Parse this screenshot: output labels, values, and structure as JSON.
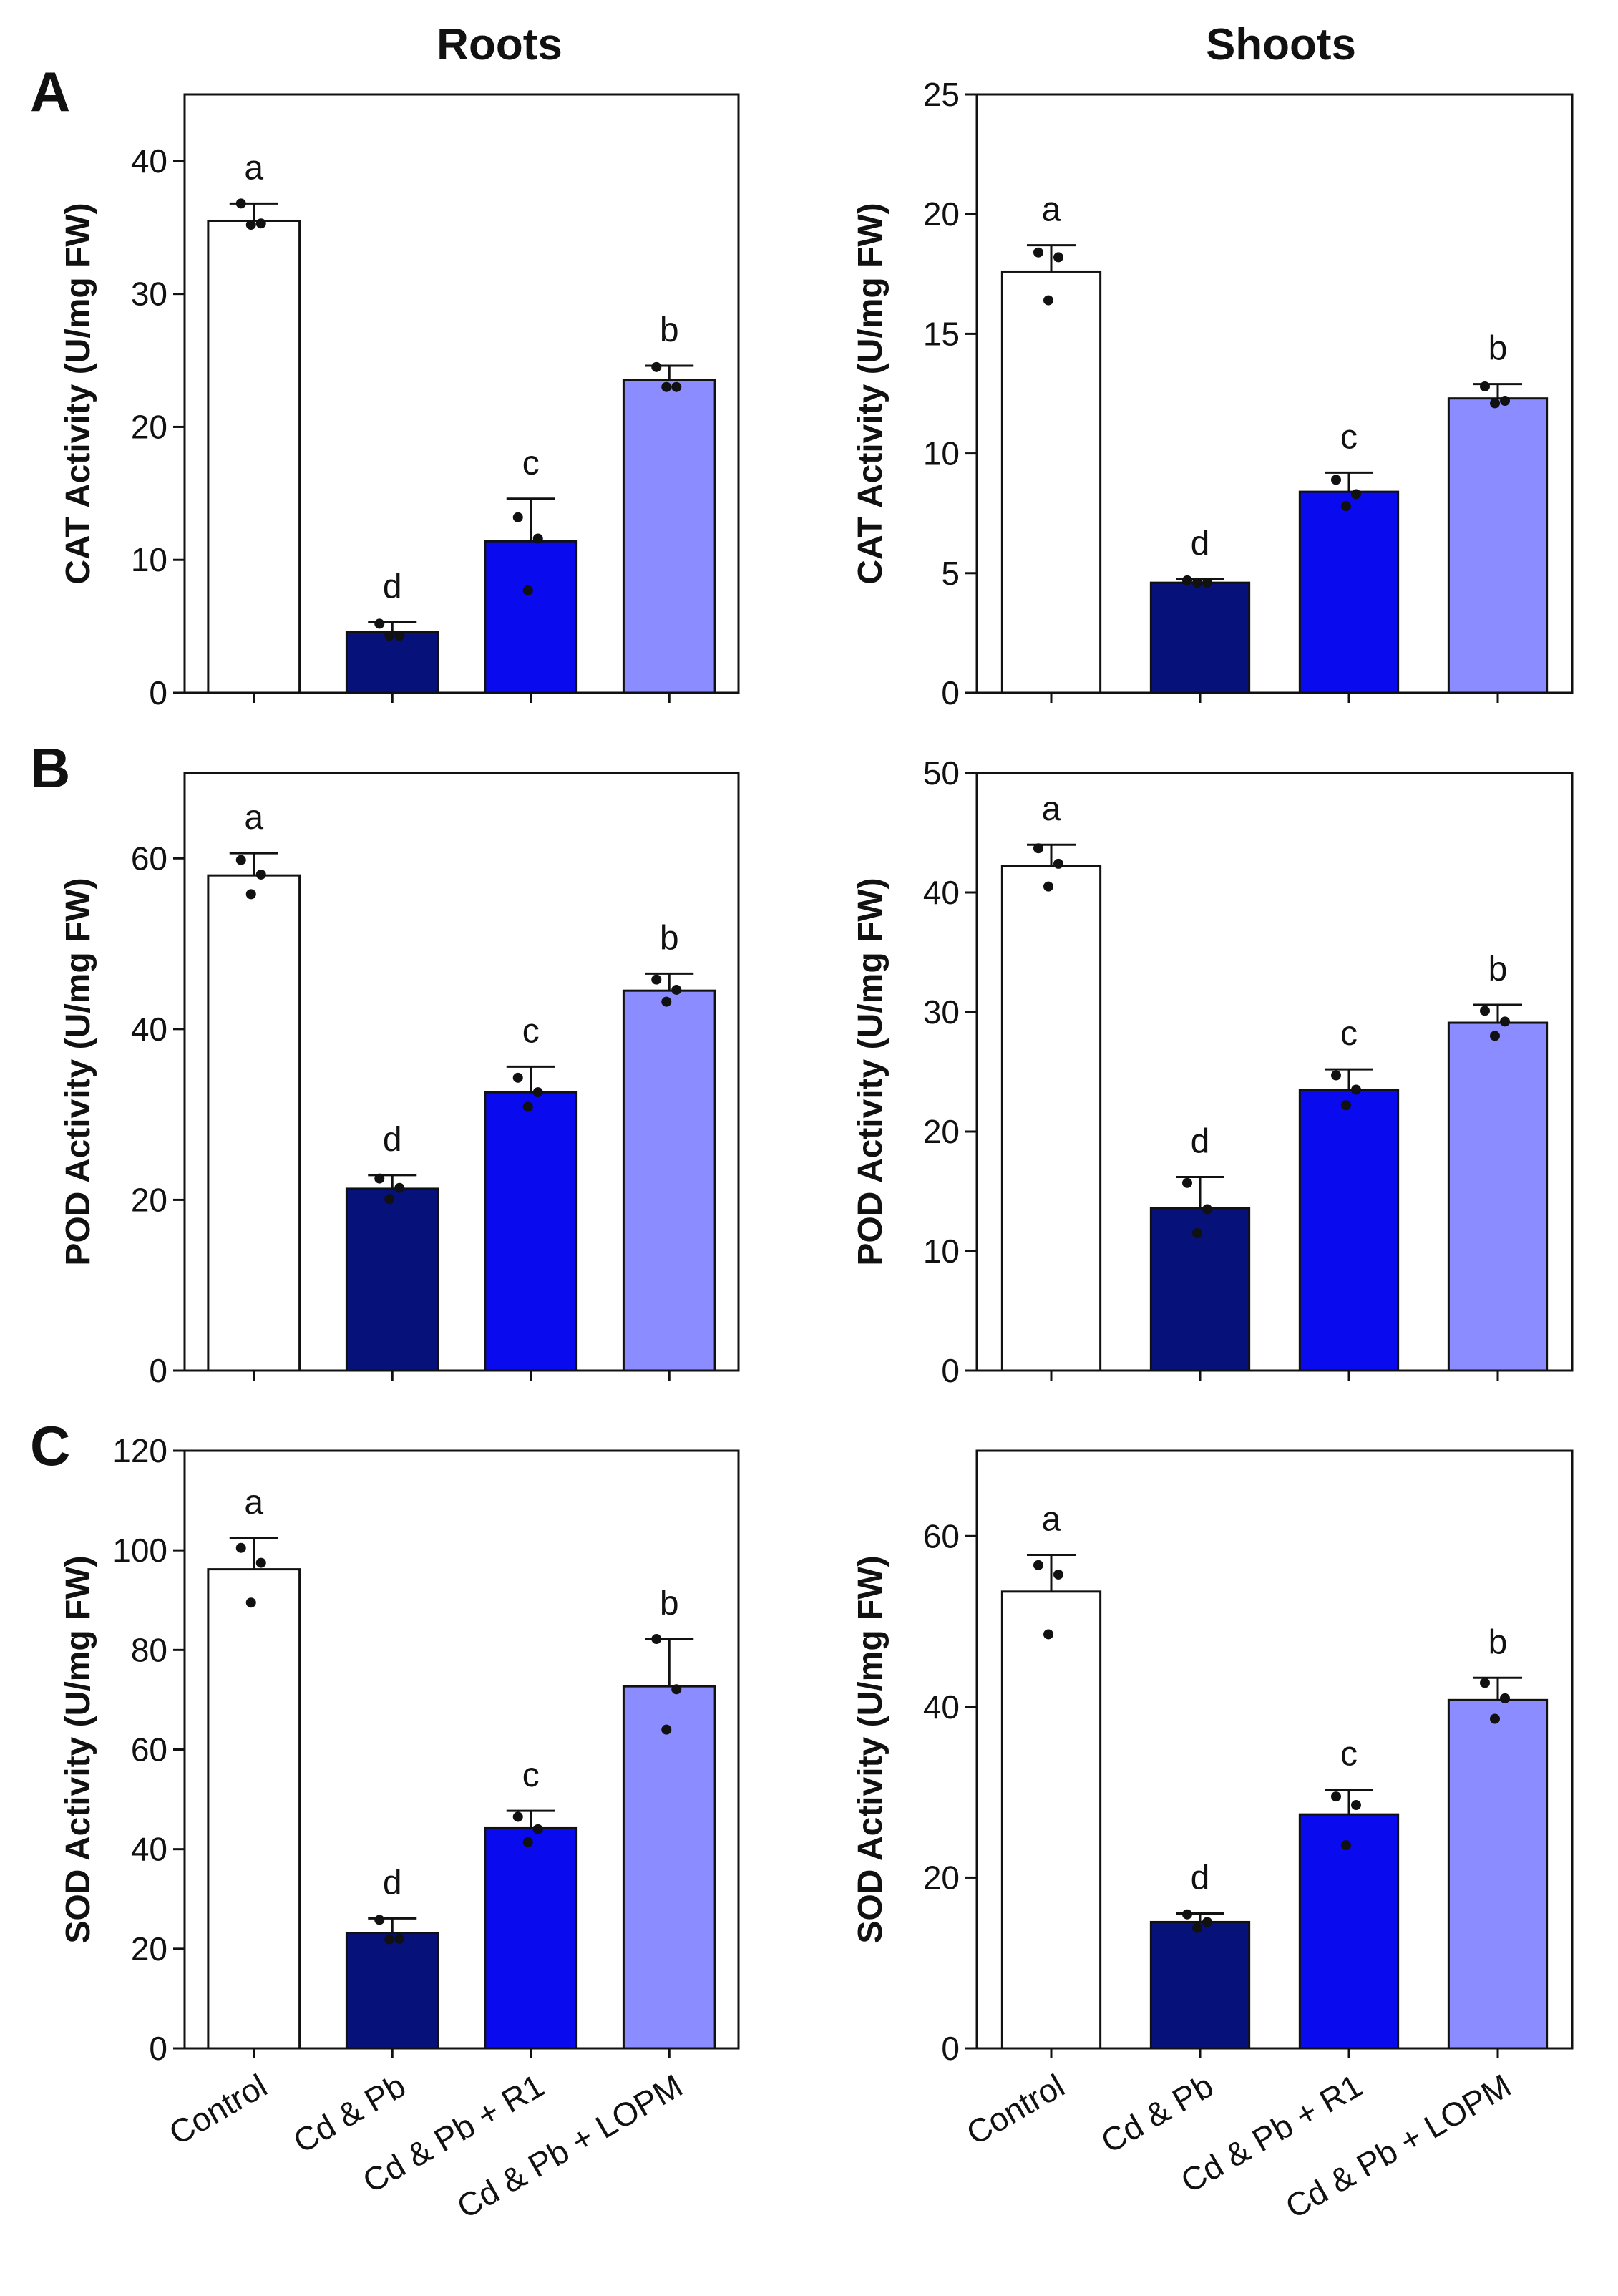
{
  "figure": {
    "column_titles": [
      "Roots",
      "Shoots"
    ],
    "panel_letters": [
      "A",
      "B",
      "C"
    ]
  },
  "chart_data": [
    {
      "id": "A-roots",
      "type": "bar",
      "panel": "A",
      "tissue": "Roots",
      "ylabel": "CAT Activity (U/mg FW)",
      "ylim": [
        0,
        45
      ],
      "yticks": [
        0,
        10,
        20,
        30,
        40
      ],
      "categories": [
        "Control",
        "Cd & Pb",
        "Cd & Pb + R1",
        "Cd & Pb + LOPM"
      ],
      "values": [
        35.5,
        4.6,
        11.4,
        23.5
      ],
      "errors": [
        1.3,
        0.7,
        3.2,
        1.1
      ],
      "points": [
        [
          36.8,
          35.3,
          35.2
        ],
        [
          5.2,
          4.3,
          4.3
        ],
        [
          13.2,
          11.6,
          7.7
        ],
        [
          24.5,
          23.0,
          23.0
        ]
      ],
      "letters": [
        "a",
        "d",
        "c",
        "b"
      ]
    },
    {
      "id": "A-shoots",
      "type": "bar",
      "panel": "A",
      "tissue": "Shoots",
      "ylabel": "CAT Activity (U/mg FW)",
      "ylim": [
        0,
        25
      ],
      "yticks": [
        0,
        5,
        10,
        15,
        20,
        25
      ],
      "categories": [
        "Control",
        "Cd & Pb",
        "Cd & Pb + R1",
        "Cd & Pb + LOPM"
      ],
      "values": [
        17.6,
        4.6,
        8.4,
        12.3
      ],
      "errors": [
        1.1,
        0.15,
        0.8,
        0.6
      ],
      "points": [
        [
          18.4,
          18.2,
          16.4
        ],
        [
          4.7,
          4.6,
          4.6
        ],
        [
          8.9,
          8.3,
          7.8
        ],
        [
          12.8,
          12.2,
          12.1
        ]
      ],
      "letters": [
        "a",
        "d",
        "c",
        "b"
      ]
    },
    {
      "id": "B-roots",
      "type": "bar",
      "panel": "B",
      "tissue": "Roots",
      "ylabel": "POD Activity (U/mg FW)",
      "ylim": [
        0,
        70
      ],
      "yticks": [
        0,
        20,
        40,
        60
      ],
      "categories": [
        "Control",
        "Cd & Pb",
        "Cd & Pb + R1",
        "Cd & Pb + LOPM"
      ],
      "values": [
        58,
        21.3,
        32.6,
        44.5
      ],
      "errors": [
        2.6,
        1.6,
        3.0,
        2.0
      ],
      "points": [
        [
          59.8,
          58.1,
          55.8
        ],
        [
          22.5,
          21.4,
          20.1
        ],
        [
          34.3,
          32.6,
          30.9
        ],
        [
          45.8,
          44.6,
          43.2
        ]
      ],
      "letters": [
        "a",
        "d",
        "c",
        "b"
      ]
    },
    {
      "id": "B-shoots",
      "type": "bar",
      "panel": "B",
      "tissue": "Shoots",
      "ylabel": "POD Activity (U/mg FW)",
      "ylim": [
        0,
        50
      ],
      "yticks": [
        0,
        10,
        20,
        30,
        40,
        50
      ],
      "categories": [
        "Control",
        "Cd & Pb",
        "Cd & Pb + R1",
        "Cd & Pb + LOPM"
      ],
      "values": [
        42.2,
        13.6,
        23.5,
        29.1
      ],
      "errors": [
        1.8,
        2.6,
        1.7,
        1.5
      ],
      "points": [
        [
          43.7,
          42.4,
          40.5
        ],
        [
          15.7,
          13.5,
          11.5
        ],
        [
          24.7,
          23.5,
          22.2
        ],
        [
          30.1,
          29.2,
          28.0
        ]
      ],
      "letters": [
        "a",
        "d",
        "c",
        "b"
      ]
    },
    {
      "id": "C-roots",
      "type": "bar",
      "panel": "C",
      "tissue": "Roots",
      "ylabel": "SOD Activity (U/mg FW)",
      "ylim": [
        0,
        120
      ],
      "yticks": [
        0,
        20,
        40,
        60,
        80,
        100,
        120
      ],
      "categories": [
        "Control",
        "Cd & Pb",
        "Cd & Pb + R1",
        "Cd & Pb + LOPM"
      ],
      "values": [
        96.2,
        23.2,
        44.2,
        72.7
      ],
      "errors": [
        6.3,
        2.9,
        3.5,
        9.5
      ],
      "points": [
        [
          100.5,
          97.5,
          89.5
        ],
        [
          25.8,
          22.0,
          21.9
        ],
        [
          46.5,
          44.0,
          41.4
        ],
        [
          82.2,
          72.1,
          64.0
        ]
      ],
      "letters": [
        "a",
        "d",
        "c",
        "b"
      ]
    },
    {
      "id": "C-shoots",
      "type": "bar",
      "panel": "C",
      "tissue": "Shoots",
      "ylabel": "SOD Activity (U/mg FW)",
      "ylim": [
        0,
        70
      ],
      "yticks": [
        0,
        20,
        40,
        60
      ],
      "categories": [
        "Control",
        "Cd & Pb",
        "Cd & Pb + R1",
        "Cd & Pb + LOPM"
      ],
      "values": [
        53.5,
        14.8,
        27.4,
        40.8
      ],
      "errors": [
        4.3,
        1.0,
        2.9,
        2.6
      ],
      "points": [
        [
          56.6,
          55.5,
          48.5
        ],
        [
          15.7,
          14.8,
          14.1
        ],
        [
          29.5,
          28.5,
          23.8
        ],
        [
          42.8,
          41.0,
          38.6
        ]
      ],
      "letters": [
        "a",
        "d",
        "c",
        "b"
      ]
    }
  ],
  "colors": {
    "bars": [
      "#ffffff",
      "#07117a",
      "#0a0aee",
      "#8b8cff"
    ],
    "outline": "#111111",
    "points": "#111111"
  }
}
